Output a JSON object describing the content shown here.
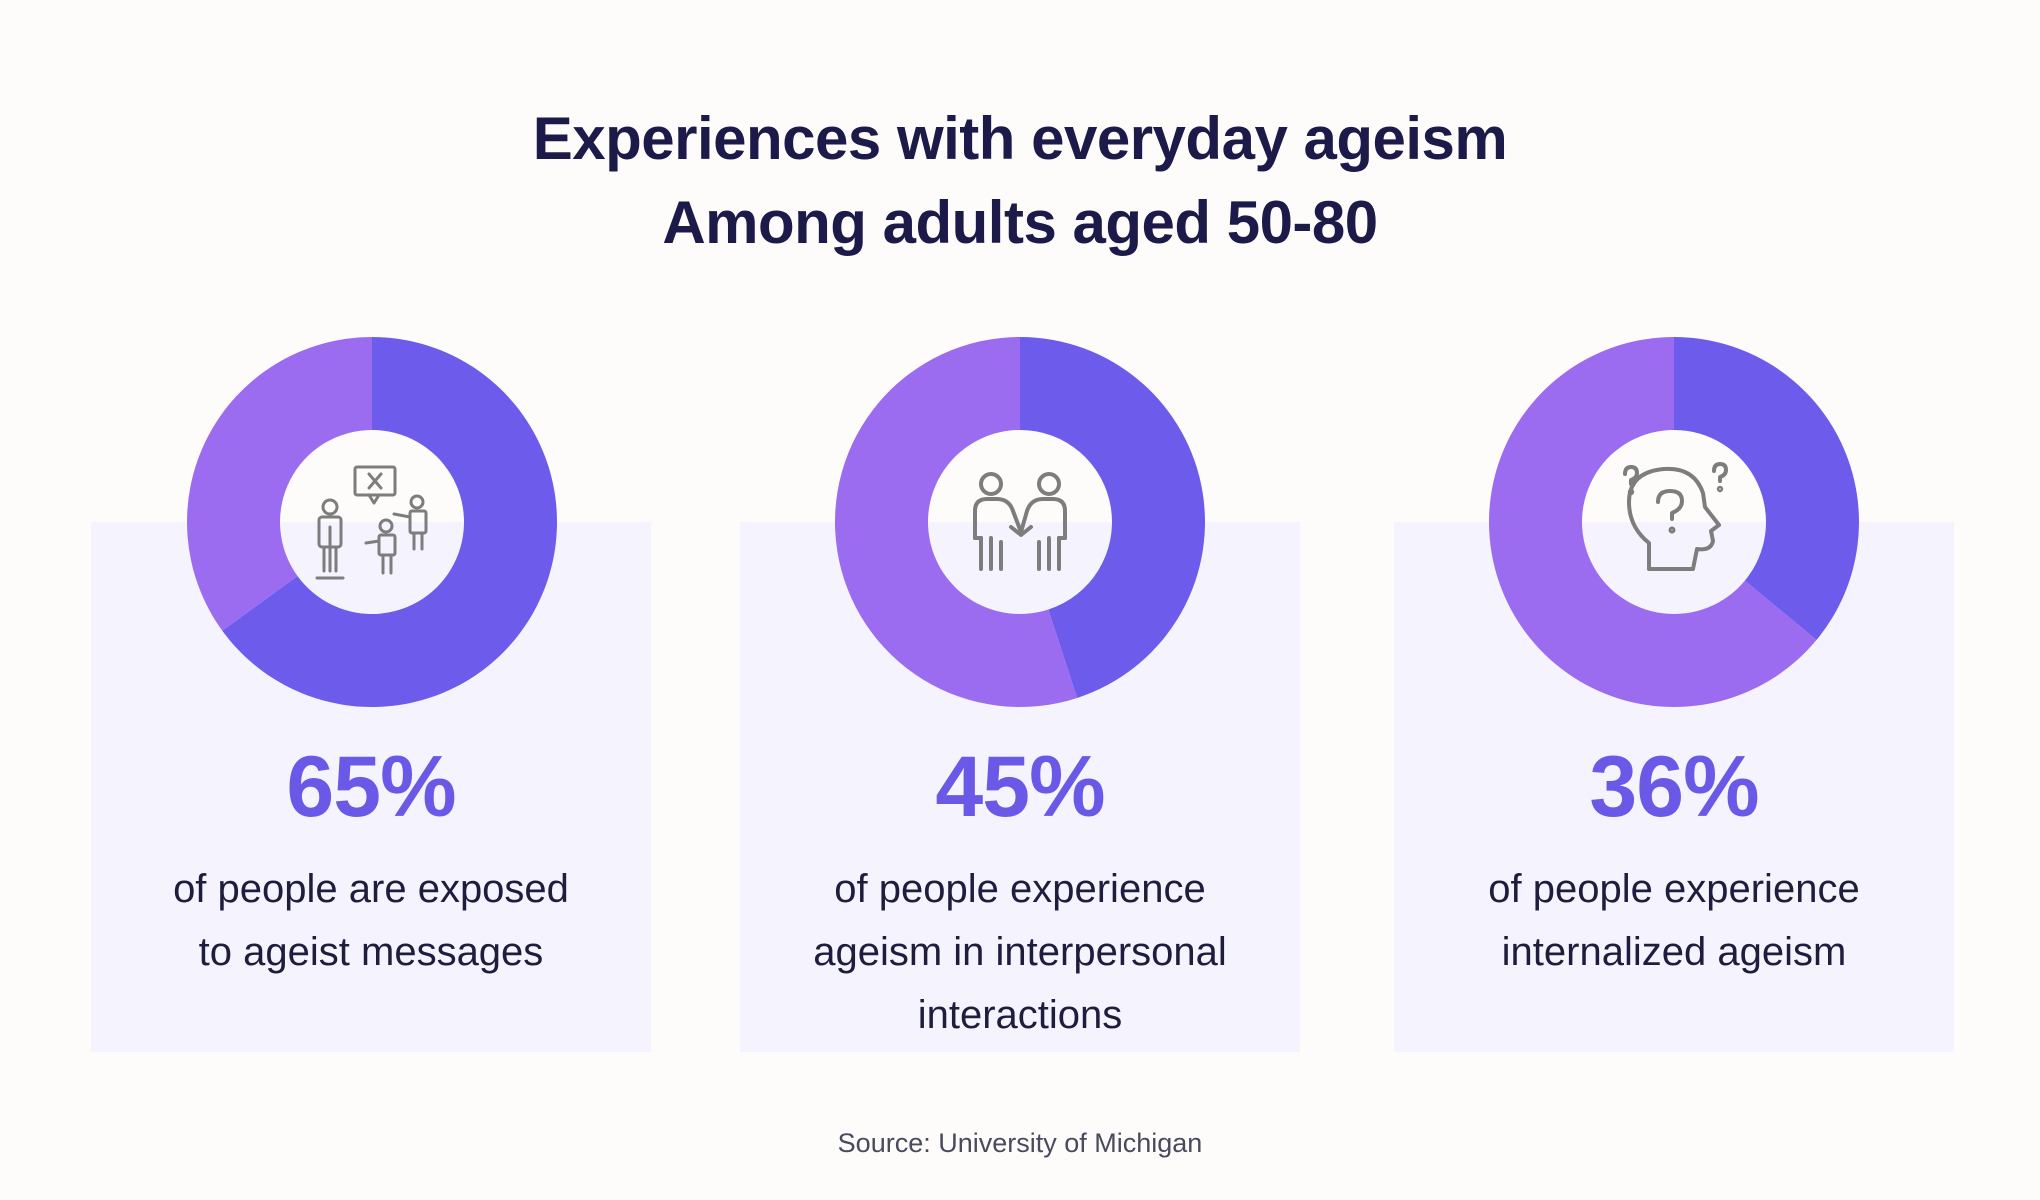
{
  "title": {
    "line1": "Experiences with everyday ageism",
    "line2": "Among adults aged 50-80"
  },
  "colors": {
    "primary": "#6d5bec",
    "secondary": "#9c6cf0",
    "card_bg": "#f5f4fe",
    "title": "#1b1a48",
    "percent_text": "#6a59e6",
    "icon": "#7d7d7d"
  },
  "stats": [
    {
      "percent_label": "65%",
      "desc_line1": "of people are exposed",
      "desc_line2": "to ageist messages",
      "desc_line3": "",
      "icon": "ageist-messages-icon"
    },
    {
      "percent_label": "45%",
      "desc_line1": "of people experience",
      "desc_line2": "ageism in interpersonal",
      "desc_line3": "interactions",
      "icon": "handshake-people-icon"
    },
    {
      "percent_label": "36%",
      "desc_line1": "of people experience",
      "desc_line2": "internalized ageism",
      "desc_line3": "",
      "icon": "head-question-icon"
    }
  ],
  "chart_data": [
    {
      "type": "pie",
      "title": "",
      "values": [
        65,
        35
      ]
    },
    {
      "type": "pie",
      "title": "",
      "values": [
        45,
        55
      ]
    },
    {
      "type": "pie",
      "title": "",
      "values": [
        36,
        64
      ]
    }
  ],
  "source": "Source: University of Michigan"
}
